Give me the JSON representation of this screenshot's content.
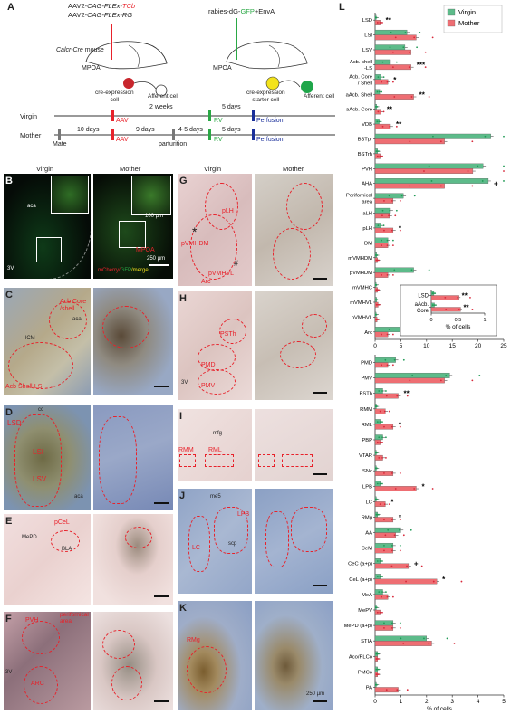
{
  "panel_letters": {
    "A": "A",
    "B": "B",
    "C": "C",
    "D": "D",
    "E": "E",
    "F": "F",
    "G": "G",
    "H": "H",
    "I": "I",
    "J": "J",
    "K": "K",
    "L": "L"
  },
  "panelA": {
    "left_virus_line1_pre": "AAV2-",
    "left_virus_line1_mid": "CAG-FLEx-",
    "left_virus_line1_red": "TCb",
    "left_virus_line2_pre": "AAV2-",
    "left_virus_line2_mid": "CAG-FLEx-RG",
    "mouse_label_ital": "Calcr-Cre",
    "mouse_label": " mouse",
    "mpoa_left": "MPOA",
    "mpoa_right": "MPOA",
    "cre_cell": "cre-expression\ncell",
    "afferent_left": "Afferent cell",
    "right_virus_pre": "rabies-dG-",
    "right_virus_green": "GFP",
    "right_virus_post": "+EnvA",
    "starter_cell": "cre-expression\nstarter cell",
    "afferent_right": "Afferent cell",
    "virgin": "Virgin",
    "mother": "Mother",
    "two_weeks": "2 weeks",
    "five_days_top": "5 days",
    "aav_top": "AAV",
    "rv_top": "RV",
    "perfusion_top": "Perfusion",
    "ten_days": "10 days",
    "aav_bottom": "AAV",
    "nine_days": "9 days",
    "four_five_days": "4-5 days",
    "rv_bottom": "RV",
    "five_days_bottom": "5 days",
    "perfusion_bottom": "Perfusion",
    "mate": "Mate",
    "parturition": "parturition"
  },
  "col_headers": {
    "virgin_left": "Virgin",
    "mother_left": "Mother",
    "virgin_mid": "Virgin",
    "mother_mid": "Mother"
  },
  "panelB": {
    "aca": "aca",
    "v3": "3V",
    "mpoa": "MPOA",
    "legend_mcherry": "mCherry/",
    "legend_gfp": "GFP",
    "legend_merge": "/merge",
    "scale_inset": "100 µm",
    "scale_main": "250 µm"
  },
  "panelC": {
    "acb": "Acb Core\n/shell",
    "aca": "aca",
    "lcm": "lCM",
    "shell": "Acb Shell-LS"
  },
  "panelD": {
    "cc": "cc",
    "lsd": "LSD",
    "lsi": "LSI",
    "lsv": "LSV",
    "aca": "aca"
  },
  "panelE": {
    "pcel": "pCeL",
    "mepd": "MePD",
    "bla": "BLA"
  },
  "panelF": {
    "pvh": "PVH",
    "perifornical": "perifornical\narea",
    "arc": "ARC",
    "v3": "3V"
  },
  "panelG": {
    "plh": "pLH",
    "vmhdm": "pVMHDM",
    "vmhvl": "pVMHVL",
    "arc": "Arc",
    "star": "*",
    "hash": "#"
  },
  "panelH": {
    "psth": "PSTh",
    "pmd": "PMD",
    "pmv": "PMV",
    "v3": "3V"
  },
  "panelI": {
    "mfg": "mfg",
    "rmm": "RMM",
    "rml": "RML"
  },
  "panelJ": {
    "me5": "me5",
    "lpb": "LPB",
    "lc": "LC",
    "scp": "scp"
  },
  "panelK": {
    "rmg": "RMg",
    "scale": "250 µm"
  },
  "chart_data": [
    {
      "type": "bar",
      "orientation": "horizontal",
      "xlabel": "",
      "xlim": [
        0,
        25
      ],
      "xticks": [
        0,
        5,
        10,
        15,
        20,
        25
      ],
      "legend": [
        "Virgin",
        "Mother"
      ],
      "legend_placement": "top-right",
      "colors": {
        "Virgin": "#5dbb8a",
        "Mother": "#ee6e73"
      },
      "categories": [
        "LSD",
        "LSI",
        "LSV",
        "Acb. shell\n-LS",
        "Acb. Core\n/ Shell",
        "aAcb. Shell",
        "aAcb. Core",
        "VDB",
        "BSTpr",
        "BSTrh",
        "PVH",
        "AHA",
        "Perifornical\narea",
        "aLH",
        "pLH",
        "DM",
        "mVMHDM",
        "pVMHDM",
        "mVMHC",
        "mVMHVL",
        "pVMHVL",
        "Arc"
      ],
      "series": [
        {
          "name": "Virgin",
          "values": [
            0.2,
            6.2,
            5.8,
            3.0,
            1.2,
            0.9,
            0.3,
            0.8,
            22.5,
            0.5,
            21.0,
            22.0,
            5.5,
            3.0,
            1.2,
            2.5,
            0.3,
            7.5,
            0.2,
            0.3,
            0.2,
            5.5
          ]
        },
        {
          "name": "Mother",
          "values": [
            1.0,
            8.0,
            7.0,
            7.0,
            2.5,
            7.5,
            1.2,
            3.0,
            13.5,
            1.0,
            19.0,
            13.5,
            3.5,
            2.8,
            3.5,
            2.5,
            0.5,
            2.5,
            0.5,
            0.6,
            0.4,
            2.5
          ]
        }
      ],
      "significance": {
        "LSD": "**",
        "Acb. shell\n-LS": "***",
        "Acb. Core\n/ Shell": "*",
        "aAcb. Shell": "**",
        "aAcb. Core": "**",
        "VDB": "**",
        "AHA": "+",
        "pLH": "*",
        "Arc": "*"
      }
    },
    {
      "type": "bar",
      "orientation": "horizontal",
      "inset": true,
      "xlabel": "% of cells",
      "xlim": [
        0,
        1.0
      ],
      "xticks": [
        0.0,
        0.5,
        1.0
      ],
      "categories": [
        "LSD",
        "aAcb.\nCore"
      ],
      "series": [
        {
          "name": "Virgin",
          "values": [
            0.05,
            0.06
          ]
        },
        {
          "name": "Mother",
          "values": [
            0.52,
            0.55
          ]
        }
      ],
      "significance": {
        "LSD": "**",
        "aAcb.\nCore": "**"
      }
    },
    {
      "type": "bar",
      "orientation": "horizontal",
      "xlabel": "% of cells",
      "xlim": [
        0,
        5
      ],
      "xticks": [
        0,
        1,
        2,
        3,
        4,
        5
      ],
      "categories": [
        "PMD",
        "PMV",
        "PSTh",
        "RMM",
        "RML",
        "PBP",
        "VTAR",
        "SNc",
        "LPB",
        "LC",
        "RMg",
        "AA",
        "CeM",
        "CeC (a+p)",
        "CeL (a+p)",
        "MeA",
        "MePV",
        "MePD (a+p)",
        "STIA",
        "Aco/PLCo",
        "PMCo",
        "PA"
      ],
      "series": [
        {
          "name": "Virgin",
          "values": [
            0.8,
            2.9,
            0.3,
            0.05,
            0.2,
            0.3,
            0.05,
            0.05,
            0.2,
            0.05,
            0.1,
            1.0,
            0.7,
            0.2,
            0.2,
            0.3,
            0.05,
            0.7,
            2.0,
            0.1,
            0.1,
            0.05
          ]
        },
        {
          "name": "Mother",
          "values": [
            0.5,
            2.7,
            0.9,
            0.4,
            0.7,
            0.2,
            0.3,
            0.7,
            1.6,
            0.4,
            0.7,
            0.8,
            0.7,
            1.3,
            2.4,
            0.5,
            0.2,
            0.7,
            2.2,
            0.1,
            0.1,
            0.9
          ]
        }
      ],
      "significance": {
        "PSTh": "**",
        "RML": "*",
        "LPB": "*",
        "LC": "*",
        "RMg": "*",
        "CeC (a+p)": "+",
        "CeL (a+p)": "*"
      }
    }
  ]
}
